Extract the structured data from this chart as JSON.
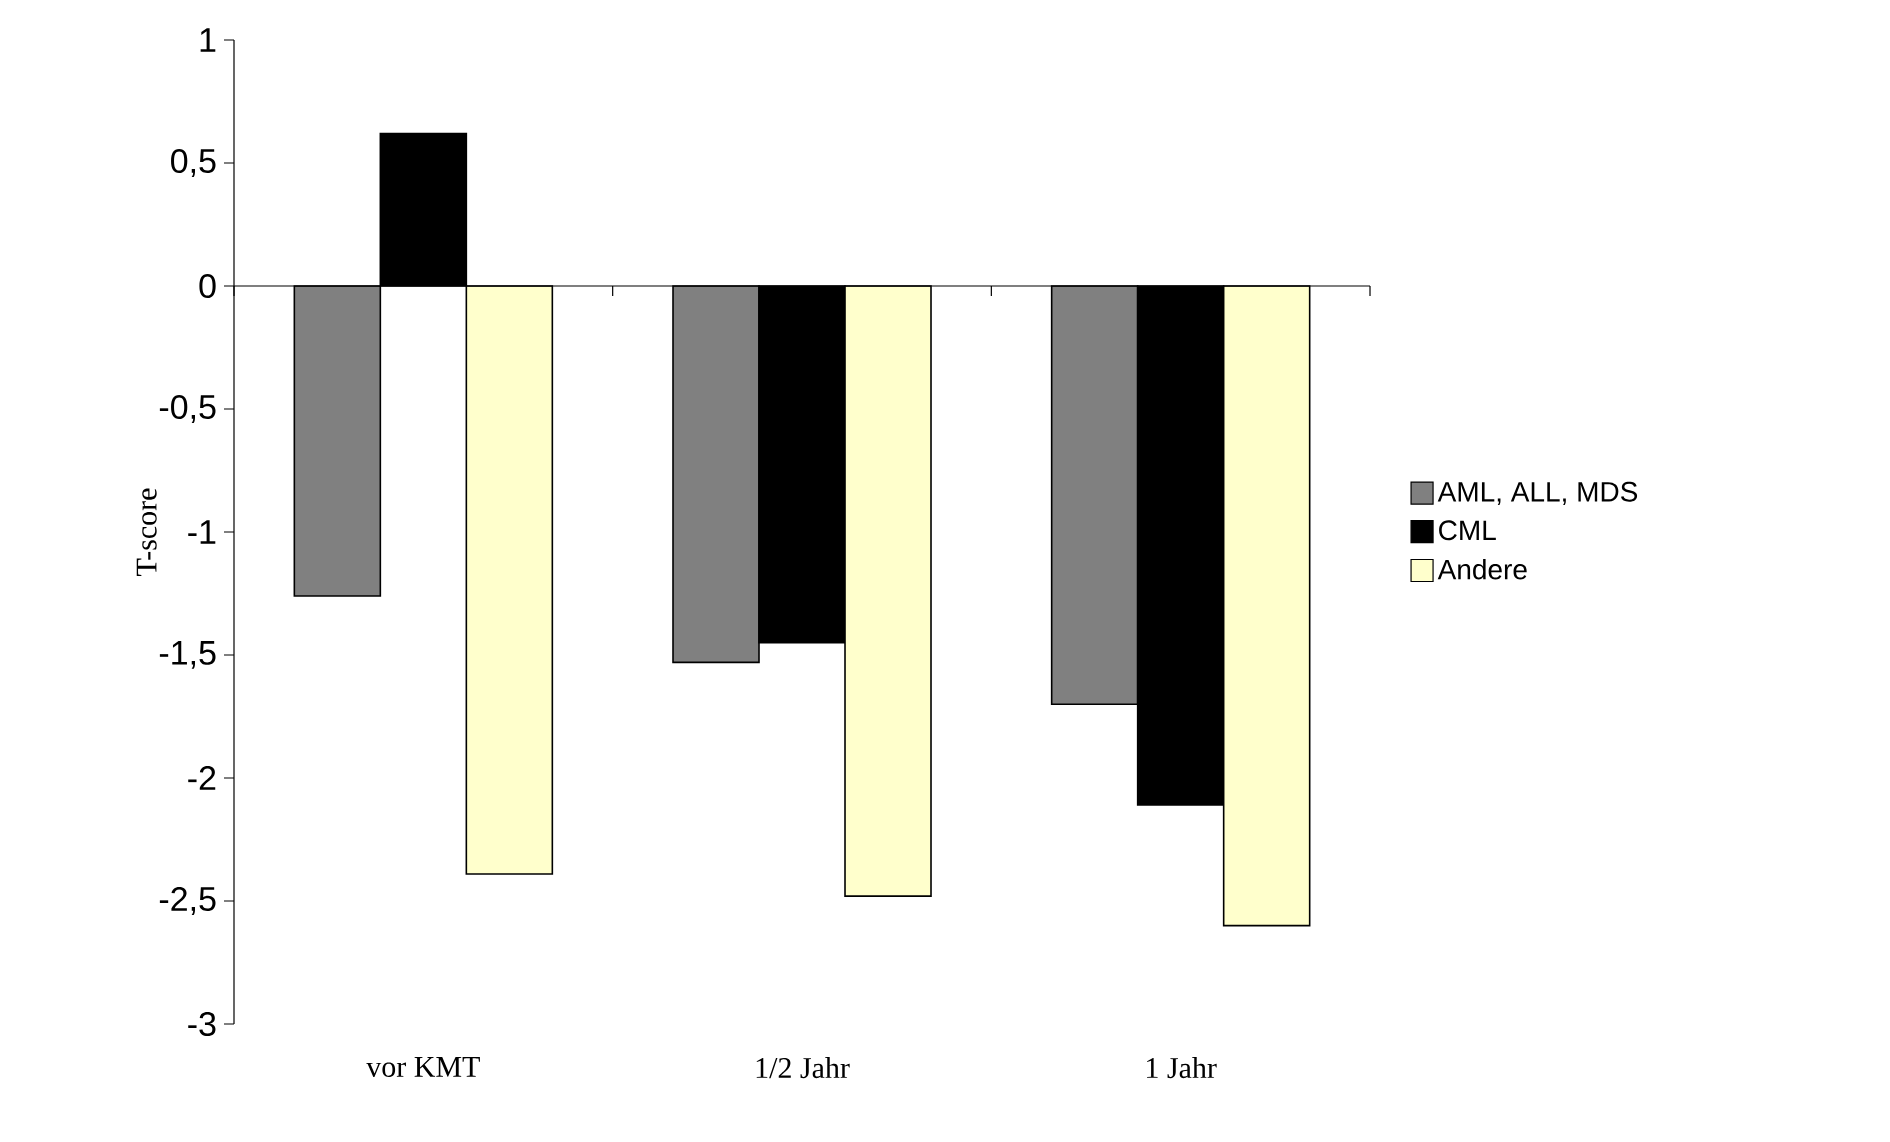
{
  "chart_data": {
    "type": "bar",
    "ylabel": "T-score",
    "categories": [
      "vor KMT",
      "1/2 Jahr",
      "1 Jahr"
    ],
    "series": [
      {
        "name": "AML, ALL, MDS",
        "color": "#808080",
        "values": [
          -1.26,
          -1.53,
          -1.7
        ]
      },
      {
        "name": "CML",
        "color": "#000000",
        "values": [
          0.62,
          -1.45,
          -2.11
        ]
      },
      {
        "name": "Andere",
        "color": "#ffffcc",
        "values": [
          -2.39,
          -2.48,
          -2.6
        ]
      }
    ],
    "ylim": [
      -3,
      1
    ],
    "yticks": [
      {
        "value": -3,
        "label": "-3"
      },
      {
        "value": -2.5,
        "label": "-2,5"
      },
      {
        "value": -2,
        "label": "-2"
      },
      {
        "value": -1.5,
        "label": "-1,5"
      },
      {
        "value": -1,
        "label": "-1"
      },
      {
        "value": -0.5,
        "label": "-0,5"
      },
      {
        "value": 0,
        "label": "0"
      },
      {
        "value": 0.5,
        "label": "0,5"
      },
      {
        "value": 1,
        "label": "1"
      }
    ],
    "legend": "right"
  }
}
